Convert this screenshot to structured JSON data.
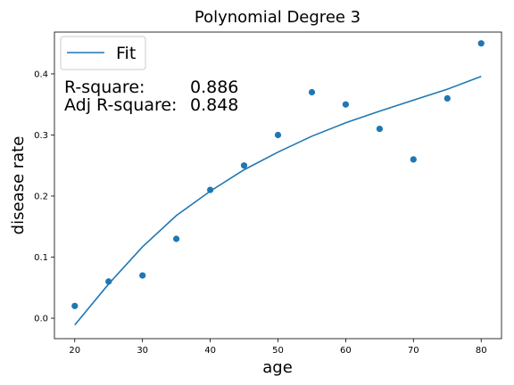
{
  "chart_data": {
    "type": "scatter",
    "title": "Polynomial Degree 3",
    "xlabel": "age",
    "ylabel": "disease rate",
    "xlim": [
      17.0,
      83.0
    ],
    "ylim": [
      -0.0335,
      0.4685
    ],
    "xticks": [
      20,
      30,
      40,
      50,
      60,
      70,
      80
    ],
    "yticks": [
      0.0,
      0.1,
      0.2,
      0.3,
      0.4
    ],
    "grid": false,
    "legend": {
      "placement": "top-left",
      "entries": [
        "Fit"
      ]
    },
    "points": {
      "x": [
        20,
        25,
        30,
        35,
        40,
        45,
        50,
        55,
        60,
        65,
        70,
        75,
        80
      ],
      "y": [
        0.02,
        0.06,
        0.07,
        0.13,
        0.21,
        0.25,
        0.3,
        0.37,
        0.35,
        0.31,
        0.26,
        0.36,
        0.45
      ],
      "color": "#1f77b4"
    },
    "series": [
      {
        "name": "Fit",
        "type": "line",
        "x": [
          20,
          25,
          30,
          35,
          40,
          45,
          50,
          55,
          60,
          65,
          70,
          75,
          80
        ],
        "y": [
          -0.011,
          0.056,
          0.117,
          0.168,
          0.208,
          0.243,
          0.272,
          0.298,
          0.32,
          0.339,
          0.357,
          0.375,
          0.396
        ],
        "color": "#1f77b4"
      }
    ],
    "annotations": [
      {
        "label": "R-square:",
        "value": "0.886"
      },
      {
        "label": "Adj R-square:",
        "value": "0.848"
      }
    ]
  }
}
